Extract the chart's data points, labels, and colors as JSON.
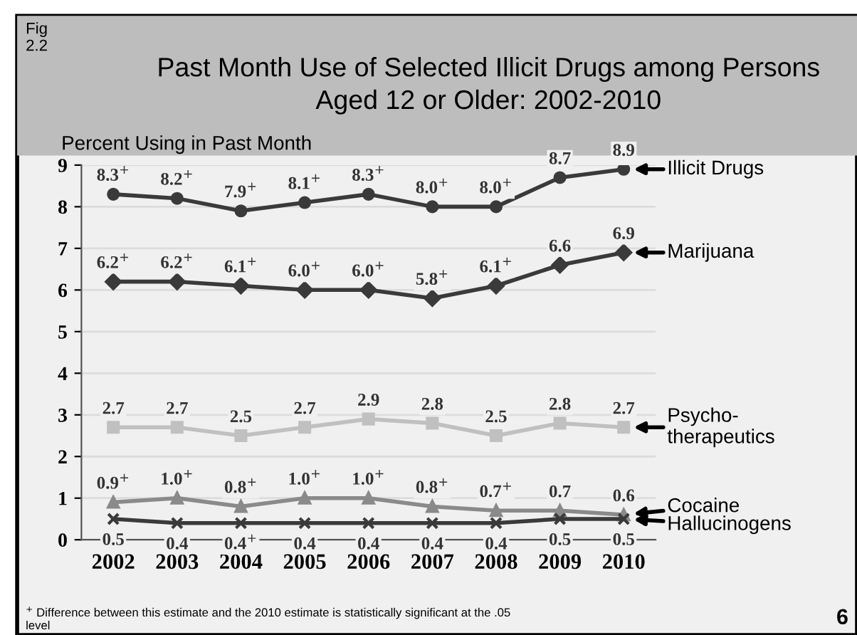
{
  "chart_data": {
    "type": "line",
    "title": "Past Month Use of Selected Illicit Drugs among Persons\nAged 12 or Older: 2002-2010",
    "ylabel": "Percent Using in Past Month",
    "categories": [
      "2002",
      "2003",
      "2004",
      "2005",
      "2006",
      "2007",
      "2008",
      "2009",
      "2010"
    ],
    "series": [
      {
        "name": "Illicit Drugs",
        "color": "#3a3a3a",
        "marker": "circle",
        "values": [
          8.3,
          8.2,
          7.9,
          8.1,
          8.3,
          8.0,
          8.0,
          8.7,
          8.9
        ],
        "value_labels": [
          "8.3$^{+}$",
          "8.2$^{+}$",
          "7.9$^{+}$",
          "8.1$^{+}$",
          "8.3$^{+}$",
          "8.0$^{+}$",
          "8.0$^{+}$",
          "8.7",
          "8.9"
        ]
      },
      {
        "name": "Marijuana",
        "color": "#3a3a3a",
        "marker": "diamond",
        "values": [
          6.2,
          6.2,
          6.1,
          6.0,
          6.0,
          5.8,
          6.1,
          6.6,
          6.9
        ],
        "value_labels": [
          "6.2$^{+}$",
          "6.2$^{+}$",
          "6.1$^{+}$",
          "6.0$^{+}$",
          "6.0$^{+}$",
          "5.8$^{+}$",
          "6.1$^{+}$",
          "6.6",
          "6.9"
        ]
      },
      {
        "name": "Psycho-\ntherapeutics",
        "color": "#c0c0c0",
        "marker": "square",
        "values": [
          2.7,
          2.7,
          2.5,
          2.7,
          2.9,
          2.8,
          2.5,
          2.8,
          2.7
        ],
        "value_labels": [
          "2.7",
          "2.7",
          "2.5",
          "2.7",
          "2.9",
          "2.8",
          "2.5",
          "2.8",
          "2.7"
        ]
      },
      {
        "name": "Cocaine",
        "color": "#8a8a8a",
        "marker": "triangle",
        "values": [
          0.9,
          1.0,
          0.8,
          1.0,
          1.0,
          0.8,
          0.7,
          0.7,
          0.6
        ],
        "value_labels": [
          "0.9$^{+}$",
          "1.0$^{+}$",
          "0.8$^{+}$",
          "1.0$^{+}$",
          "1.0$^{+}$",
          "0.8$^{+}$",
          "0.7$^{+}$",
          "0.7",
          "0.6"
        ]
      },
      {
        "name": "Hallucinogens",
        "color": "#3a3a3a",
        "marker": "cross",
        "values": [
          0.5,
          0.4,
          0.4,
          0.4,
          0.4,
          0.4,
          0.4,
          0.5,
          0.5
        ],
        "value_labels": [
          "0.5",
          "0.4",
          "0.4$^{+}$",
          "0.4",
          "0.4",
          "0.4",
          "0.4",
          "0.5",
          "0.5"
        ]
      }
    ],
    "ylim": [
      0,
      9
    ],
    "yticks": [
      0,
      1,
      2,
      3,
      4,
      5,
      6,
      7,
      8,
      9
    ],
    "grid": "y",
    "legend": false,
    "line_style": "solid",
    "annotations": [
      "Fig\n2.2",
      "$^{+}$ Difference between this estimate and the 2010 estimate is statistically significant at the .05\nlevel",
      "6"
    ]
  }
}
